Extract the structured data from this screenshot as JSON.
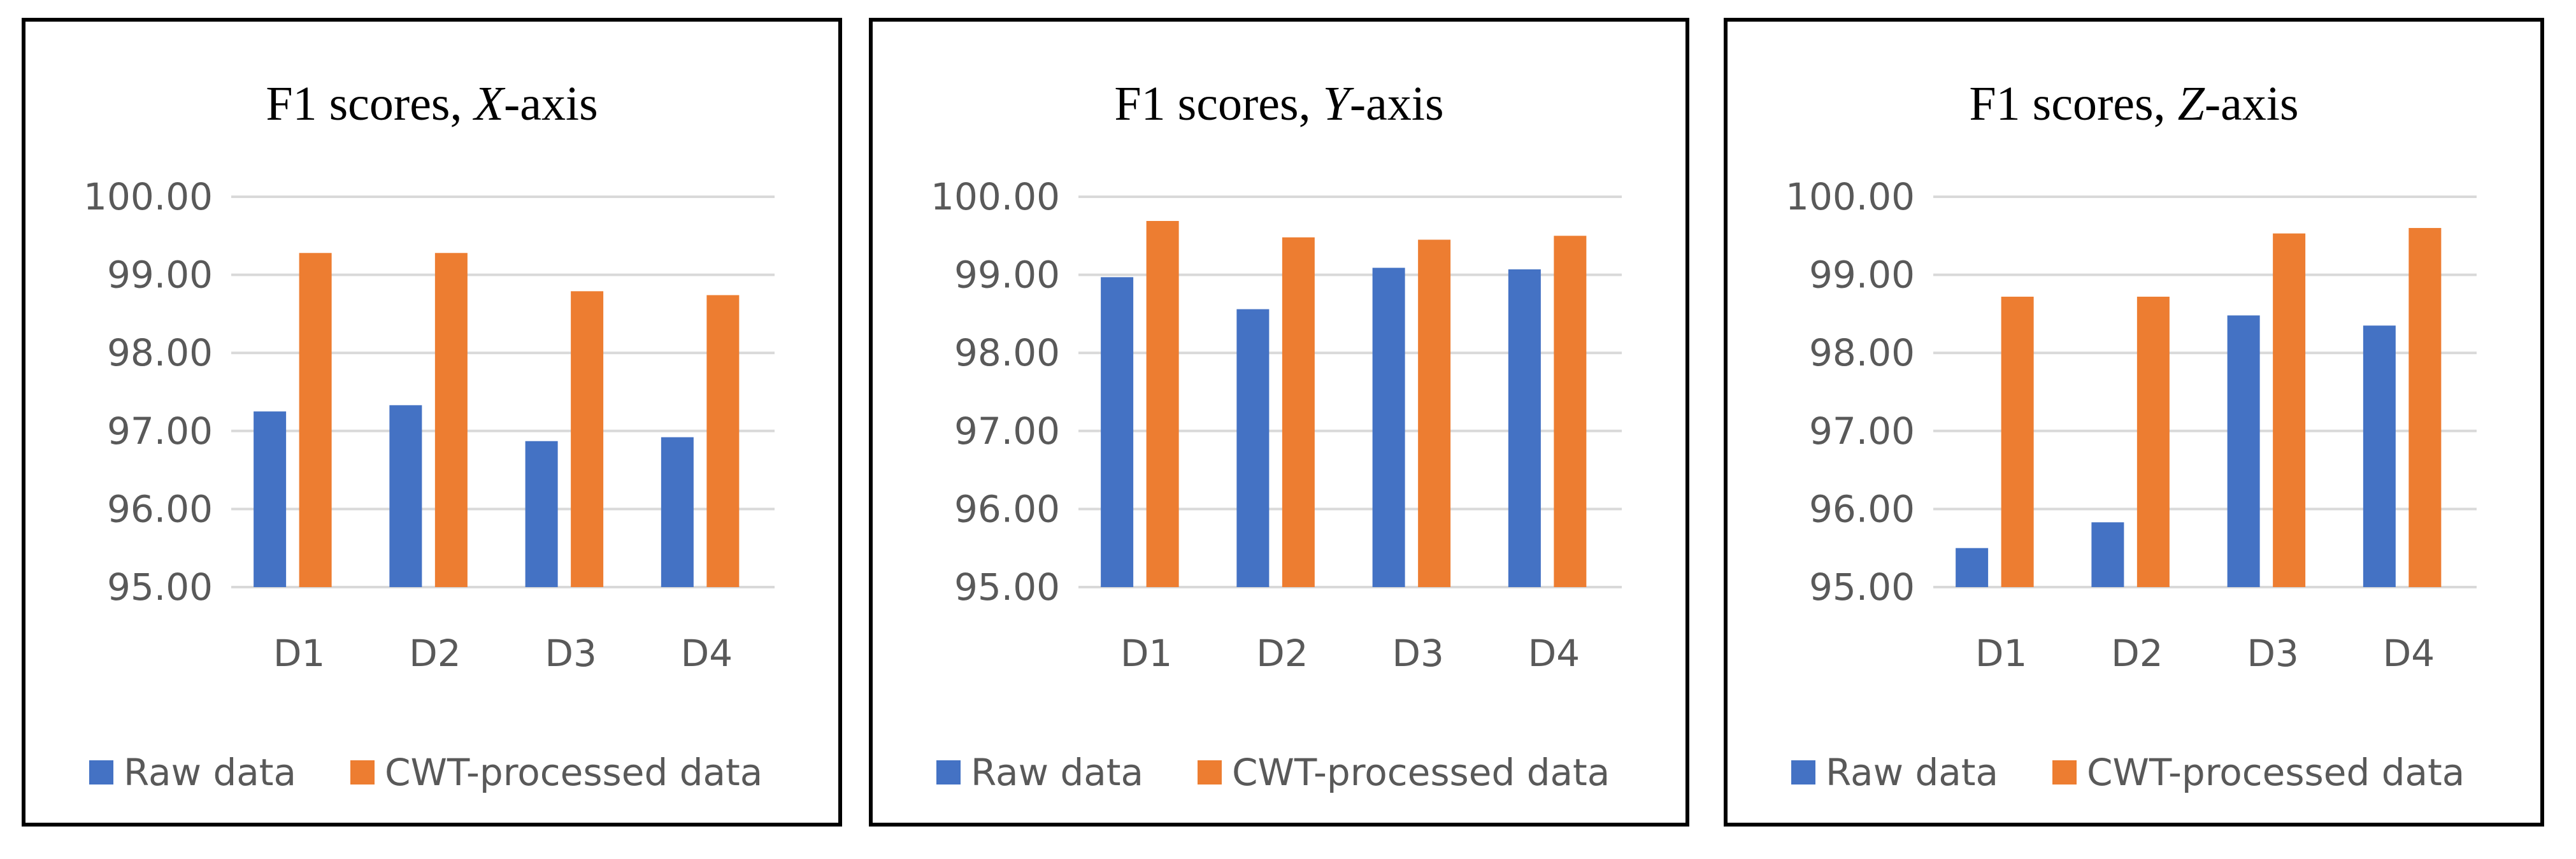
{
  "colors": {
    "raw": "#4472c4",
    "cwt": "#ed7d31"
  },
  "chart_data": [
    {
      "type": "bar",
      "title": "F1 scores, X-axis",
      "title_prefix": "F1 scores, ",
      "title_axis": "X",
      "title_suffix": "-axis",
      "categories": [
        "D1",
        "D2",
        "D3",
        "D4"
      ],
      "series": [
        {
          "name": "Raw data",
          "values": [
            97.25,
            97.33,
            96.87,
            96.92
          ]
        },
        {
          "name": "CWT-processed data",
          "values": [
            99.28,
            99.28,
            98.79,
            98.74
          ]
        }
      ],
      "ylim": [
        95.0,
        100.0
      ],
      "yticks": [
        "95.00",
        "96.00",
        "97.00",
        "98.00",
        "99.00",
        "100.00"
      ],
      "xlabel": "",
      "ylabel": "",
      "grid": true,
      "legend_position": "bottom"
    },
    {
      "type": "bar",
      "title": "F1 scores, Y-axis",
      "title_prefix": "F1 scores, ",
      "title_axis": "Y",
      "title_suffix": "-axis",
      "categories": [
        "D1",
        "D2",
        "D3",
        "D4"
      ],
      "series": [
        {
          "name": "Raw data",
          "values": [
            98.97,
            98.56,
            99.09,
            99.07
          ]
        },
        {
          "name": "CWT-processed data",
          "values": [
            99.69,
            99.48,
            99.45,
            99.5
          ]
        }
      ],
      "ylim": [
        95.0,
        100.0
      ],
      "yticks": [
        "95.00",
        "96.00",
        "97.00",
        "98.00",
        "99.00",
        "100.00"
      ],
      "xlabel": "",
      "ylabel": "",
      "grid": true,
      "legend_position": "bottom"
    },
    {
      "type": "bar",
      "title": "F1 scores, Z-axis",
      "title_prefix": "F1 scores, ",
      "title_axis": "Z",
      "title_suffix": "-axis",
      "categories": [
        "D1",
        "D2",
        "D3",
        "D4"
      ],
      "series": [
        {
          "name": "Raw data",
          "values": [
            95.5,
            95.83,
            98.48,
            98.35
          ]
        },
        {
          "name": "CWT-processed data",
          "values": [
            98.72,
            98.72,
            99.53,
            99.6
          ]
        }
      ],
      "ylim": [
        95.0,
        100.0
      ],
      "yticks": [
        "95.00",
        "96.00",
        "97.00",
        "98.00",
        "99.00",
        "100.00"
      ],
      "xlabel": "",
      "ylabel": "",
      "grid": true,
      "legend_position": "bottom"
    }
  ]
}
